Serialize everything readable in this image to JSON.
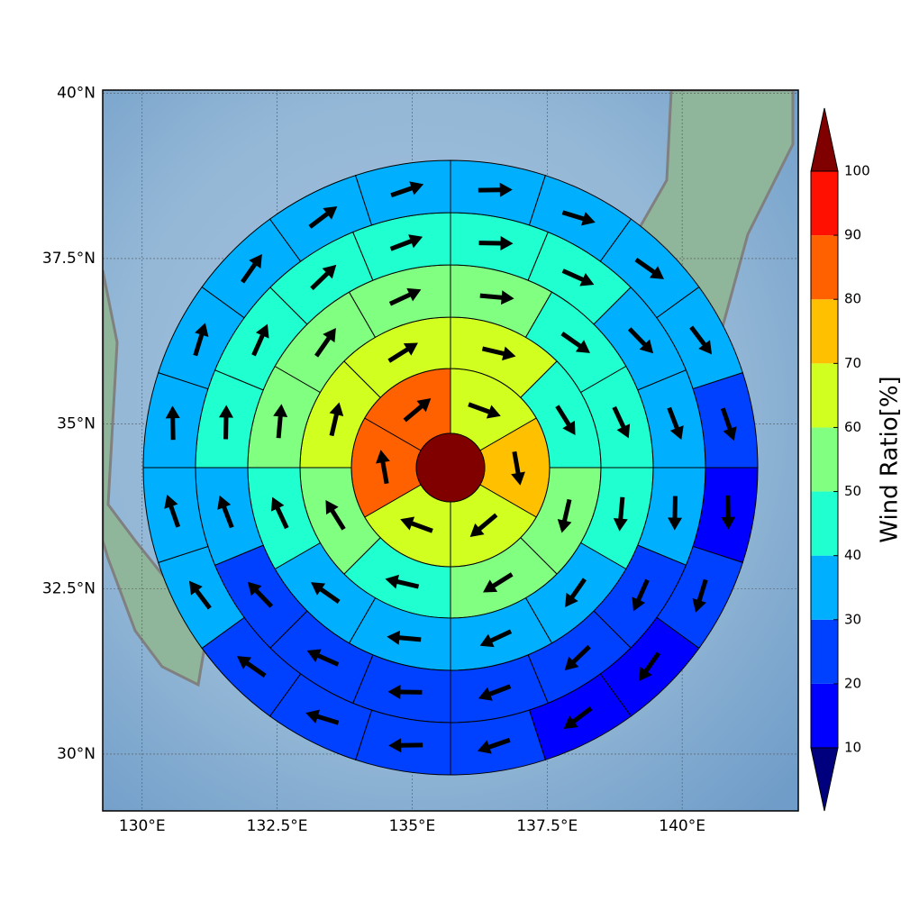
{
  "chart_data": {
    "type": "polar-grid",
    "xlim": [
      129.27,
      142.15
    ],
    "ylim": [
      29.14,
      40.05
    ],
    "xticks": [
      {
        "value": 130,
        "label": "130°E"
      },
      {
        "value": 132.5,
        "label": "132.5°E"
      },
      {
        "value": 135,
        "label": "135°E"
      },
      {
        "value": 137.5,
        "label": "137.5°E"
      },
      {
        "value": 140,
        "label": "140°E"
      }
    ],
    "yticks": [
      {
        "value": 30,
        "label": "30°N"
      },
      {
        "value": 32.5,
        "label": "32.5°N"
      },
      {
        "value": 35,
        "label": "35°N"
      },
      {
        "value": 37.5,
        "label": "37.5°N"
      },
      {
        "value": 40,
        "label": "40°N"
      }
    ],
    "grid": true,
    "center_value": 105,
    "rings": [
      {
        "values": [
          65,
          75,
          60,
          65,
          85,
          85
        ],
        "directions": [
          110,
          170,
          230,
          290,
          350,
          50
        ]
      },
      {
        "values": [
          65,
          45,
          55,
          55,
          45,
          55,
          65,
          65
        ],
        "directions": [
          103,
          148,
          193,
          238,
          283,
          328,
          13,
          58
        ]
      },
      {
        "values": [
          55,
          45,
          45,
          45,
          35,
          35,
          35,
          35,
          45,
          55,
          55,
          55
        ],
        "directions": [
          95,
          125,
          155,
          185,
          215,
          245,
          275,
          305,
          335,
          5,
          35,
          65
        ]
      },
      {
        "values": [
          45,
          45,
          35,
          35,
          35,
          25,
          25,
          25,
          25,
          25,
          25,
          35,
          45,
          45,
          45,
          45
        ],
        "directions": [
          91,
          114,
          136,
          159,
          181,
          204,
          226,
          249,
          271,
          294,
          316,
          339,
          1,
          24,
          46,
          69
        ]
      },
      {
        "values": [
          35,
          35,
          35,
          35,
          25,
          15,
          25,
          15,
          15,
          25,
          25,
          25,
          25,
          35,
          35,
          35,
          35,
          35,
          35,
          35
        ],
        "directions": [
          89,
          107,
          125,
          143,
          161,
          179,
          197,
          215,
          233,
          251,
          269,
          287,
          305,
          323,
          341,
          359,
          17,
          35,
          53,
          71
        ]
      }
    ],
    "colorbar": {
      "label": "Wind Ratio[%]",
      "ticks": [
        10,
        20,
        30,
        40,
        50,
        60,
        70,
        80,
        90,
        100
      ],
      "colors": [
        "#00007f",
        "#0000ff",
        "#0040ff",
        "#00b0ff",
        "#20ffd0",
        "#80ff80",
        "#d0ff20",
        "#ffc000",
        "#ff6000",
        "#ff1000",
        "#800000"
      ]
    }
  }
}
